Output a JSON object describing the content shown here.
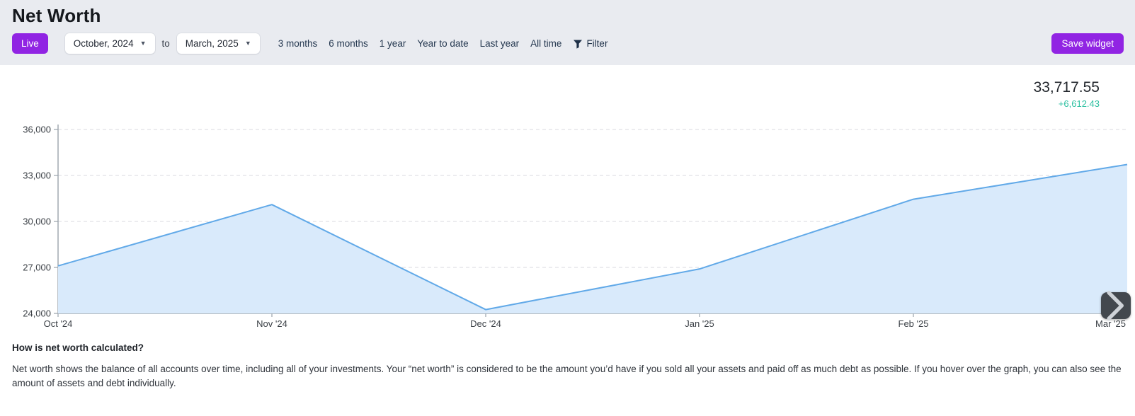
{
  "header": {
    "title": "Net Worth",
    "toolbar": {
      "live_label": "Live",
      "date_from": "October, 2024",
      "to_label": "to",
      "date_to": "March, 2025",
      "quick_ranges": [
        "3 months",
        "6 months",
        "1 year",
        "Year to date",
        "Last year",
        "All time"
      ],
      "filter_label": "Filter",
      "save_label": "Save widget"
    }
  },
  "summary": {
    "current_value": "33,717.55",
    "change": "+6,612.43"
  },
  "chart_data": {
    "type": "area",
    "title": "Net Worth over time",
    "x": [
      "Oct '24",
      "Nov '24",
      "Dec '24",
      "Jan '25",
      "Feb '25",
      "Mar '25"
    ],
    "values": [
      27100,
      31100,
      24250,
      26900,
      31450,
      33717.55
    ],
    "ylim": [
      24000,
      36000
    ],
    "yticks": [
      24000,
      27000,
      30000,
      33000,
      36000
    ],
    "ytick_labels": [
      "24,000",
      "27,000",
      "30,000",
      "33,000",
      "36,000"
    ],
    "grid": "horizontal dashed",
    "legend": "none",
    "line_color": "#61a9e8",
    "fill_color": "#d9eafb",
    "axis_color": "#9aa2ab",
    "grid_color": "#d8dadf",
    "tick_label_color": "#3b4046"
  },
  "chart_nav": {
    "next": "›"
  },
  "explainer": {
    "heading": "How is net worth calculated?",
    "body": "Net worth shows the balance of all accounts over time, including all of your investments. Your “net worth” is considered to be the amount you’d have if you sold all your assets and paid off as much debt as possible. If you hover over the graph, you can also see the amount of assets and debt individually."
  },
  "colors": {
    "accent_purple": "#9124e3",
    "positive_change": "#2dc0a1",
    "header_background": "#e9ebf0"
  }
}
